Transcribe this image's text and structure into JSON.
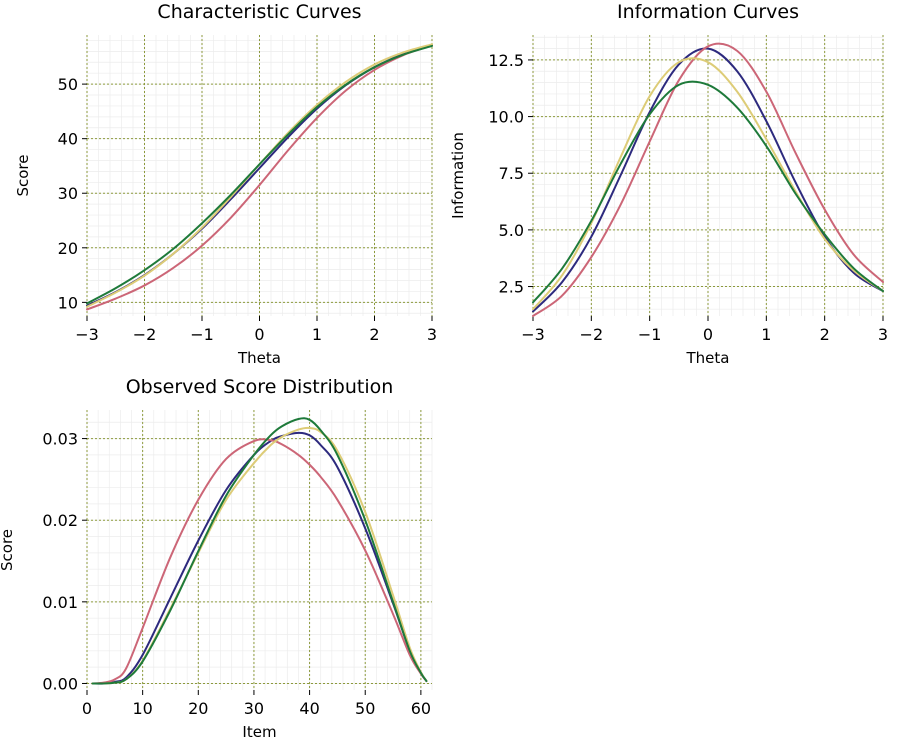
{
  "chart_data": [
    {
      "id": "characteristic",
      "type": "line",
      "title": "Characteristic Curves",
      "xlabel": "Theta",
      "ylabel": "Score",
      "xlim": [
        -3,
        3
      ],
      "ylim": [
        7.5,
        59
      ],
      "xticks": [
        -3,
        -2,
        -1,
        0,
        1,
        2,
        3
      ],
      "xtick_labels": [
        "−3",
        "−2",
        "−1",
        "0",
        "1",
        "2",
        "3"
      ],
      "yticks": [
        10,
        20,
        30,
        40,
        50
      ],
      "ytick_labels": [
        "10",
        "20",
        "30",
        "40",
        "50"
      ],
      "grid": true,
      "x": [
        -3,
        -2.5,
        -2,
        -1.5,
        -1,
        -0.5,
        0,
        0.5,
        1,
        1.5,
        2,
        2.5,
        3
      ],
      "series": [
        {
          "color": "#2d2a7e",
          "values": [
            9.4,
            11.9,
            15.0,
            18.9,
            23.5,
            28.9,
            34.6,
            40.3,
            45.5,
            49.8,
            53.1,
            55.5,
            57.1
          ]
        },
        {
          "color": "#cc6677",
          "values": [
            8.7,
            10.7,
            13.1,
            16.3,
            20.4,
            25.5,
            31.5,
            37.9,
            43.8,
            48.8,
            52.6,
            55.3,
            57.1
          ]
        },
        {
          "color": "#ddcc77",
          "values": [
            9.2,
            11.8,
            14.9,
            18.9,
            23.7,
            29.3,
            35.3,
            41.1,
            46.2,
            50.4,
            53.6,
            55.8,
            57.3
          ]
        },
        {
          "color": "#1e7a3a",
          "values": [
            9.8,
            12.6,
            15.9,
            19.8,
            24.5,
            29.7,
            35.3,
            40.8,
            45.8,
            49.9,
            53.1,
            55.4,
            57.0
          ]
        }
      ]
    },
    {
      "id": "information",
      "type": "line",
      "title": "Information Curves",
      "xlabel": "Theta",
      "ylabel": "Information",
      "xlim": [
        -3,
        3
      ],
      "ylim": [
        1.2,
        13.6
      ],
      "xticks": [
        -3,
        -2,
        -1,
        0,
        1,
        2,
        3
      ],
      "xtick_labels": [
        "−3",
        "−2",
        "−1",
        "0",
        "1",
        "2",
        "3"
      ],
      "yticks": [
        2.5,
        5.0,
        7.5,
        10.0,
        12.5
      ],
      "ytick_labels": [
        "2.5",
        "5.0",
        "7.5",
        "10.0",
        "12.5"
      ],
      "grid": true,
      "x": [
        -3,
        -2.5,
        -2,
        -1.5,
        -1,
        -0.5,
        0,
        0.5,
        1,
        1.5,
        2,
        2.5,
        3
      ],
      "series": [
        {
          "color": "#2d2a7e",
          "values": [
            1.4,
            2.7,
            4.7,
            7.4,
            10.2,
            12.3,
            13.0,
            12.0,
            9.8,
            7.1,
            4.7,
            3.1,
            2.3
          ]
        },
        {
          "color": "#cc6677",
          "values": [
            1.2,
            2.1,
            3.8,
            6.1,
            8.9,
            11.6,
            13.1,
            12.9,
            11.1,
            8.4,
            5.9,
            3.9,
            2.7
          ]
        },
        {
          "color": "#ddcc77",
          "values": [
            1.5,
            3.0,
            5.3,
            8.2,
            10.9,
            12.4,
            12.4,
            11.1,
            9.0,
            6.7,
            4.6,
            3.2,
            2.3
          ]
        },
        {
          "color": "#1e7a3a",
          "values": [
            1.8,
            3.3,
            5.4,
            7.9,
            10.1,
            11.4,
            11.4,
            10.4,
            8.7,
            6.6,
            4.8,
            3.3,
            2.3
          ]
        }
      ]
    },
    {
      "id": "observed",
      "type": "line",
      "title": "Observed Score Distribution",
      "xlabel": "Item",
      "ylabel": "Score",
      "xlim": [
        0,
        62
      ],
      "ylim": [
        -0.0008,
        0.0335
      ],
      "xticks": [
        0,
        10,
        20,
        30,
        40,
        50,
        60
      ],
      "xtick_labels": [
        "0",
        "10",
        "20",
        "30",
        "40",
        "50",
        "60"
      ],
      "yticks": [
        0.0,
        0.01,
        0.02,
        0.03
      ],
      "ytick_labels": [
        "0.00",
        "0.01",
        "0.02",
        "0.03"
      ],
      "grid": true,
      "x": [
        1,
        3,
        5,
        7,
        10,
        15,
        20,
        25,
        30,
        33,
        35,
        38,
        40,
        42,
        45,
        50,
        55,
        58,
        60,
        61
      ],
      "series": [
        {
          "color": "#2d2a7e",
          "values": [
            0.0,
            0.0,
            0.0002,
            0.0007,
            0.0035,
            0.0105,
            0.0175,
            0.0237,
            0.028,
            0.0297,
            0.0303,
            0.0307,
            0.0304,
            0.0292,
            0.0265,
            0.019,
            0.0098,
            0.004,
            0.0013,
            0.0003
          ]
        },
        {
          "color": "#cc6677",
          "values": [
            0.0,
            0.0001,
            0.0005,
            0.0018,
            0.0068,
            0.0155,
            0.0225,
            0.0275,
            0.0297,
            0.0298,
            0.0293,
            0.028,
            0.0268,
            0.0253,
            0.0225,
            0.0163,
            0.0085,
            0.0035,
            0.0012,
            0.0003
          ]
        },
        {
          "color": "#ddcc77",
          "values": [
            0.0,
            0.0,
            0.0001,
            0.0005,
            0.0028,
            0.0092,
            0.016,
            0.0225,
            0.027,
            0.0292,
            0.0302,
            0.0311,
            0.0313,
            0.0308,
            0.0285,
            0.021,
            0.0108,
            0.0044,
            0.0014,
            0.0003
          ]
        },
        {
          "color": "#1e7a3a",
          "values": [
            0.0,
            0.0,
            0.0001,
            0.0005,
            0.0027,
            0.009,
            0.0162,
            0.023,
            0.028,
            0.0304,
            0.0315,
            0.0324,
            0.0323,
            0.031,
            0.028,
            0.02,
            0.01,
            0.004,
            0.0013,
            0.0003
          ]
        }
      ]
    }
  ]
}
